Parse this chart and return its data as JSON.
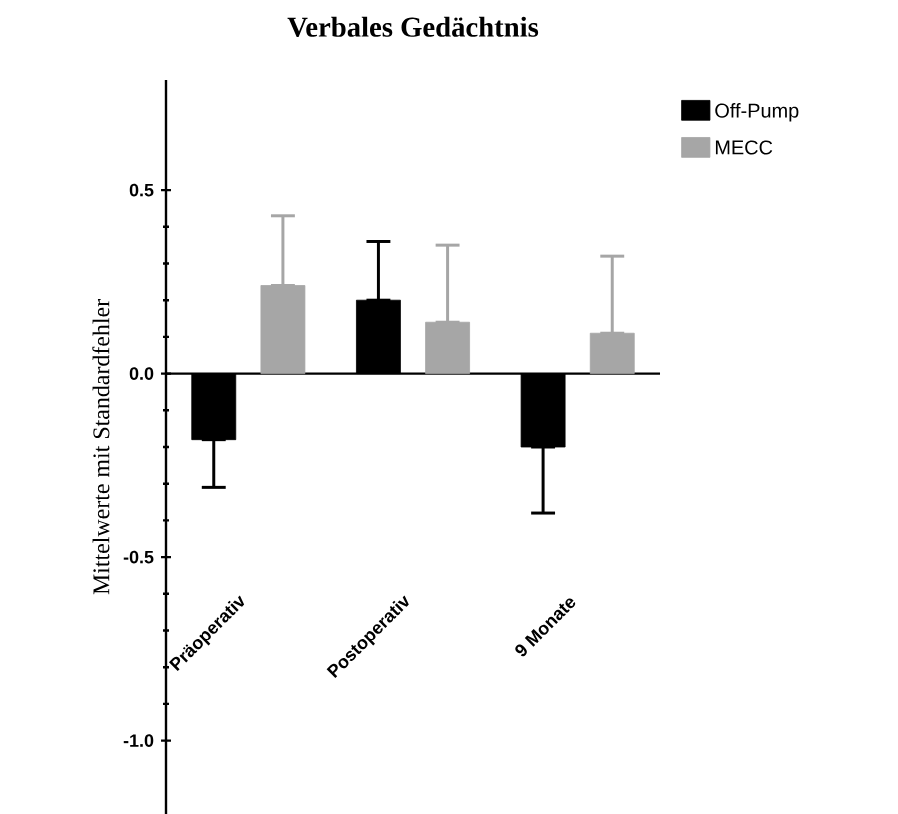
{
  "chart_data": {
    "type": "bar",
    "title": "Verbales Gedächtnis",
    "ylabel": "Mittelwerte mit Standardfehler",
    "categories": [
      "Präoperativ",
      "Postoperativ",
      "9 Monate"
    ],
    "series": [
      {
        "name": "Off-Pump",
        "color": "#000000",
        "values": [
          -0.18,
          0.2,
          -0.2
        ],
        "errors": [
          [
            -0.31,
            -0.18
          ],
          [
            0.2,
            0.36
          ],
          [
            -0.38,
            -0.2
          ]
        ]
      },
      {
        "name": "MECC",
        "color": "#a6a6a6",
        "values": [
          0.24,
          0.14,
          0.11
        ],
        "errors": [
          [
            0.24,
            0.43
          ],
          [
            0.14,
            0.35
          ],
          [
            0.11,
            0.32
          ]
        ]
      }
    ],
    "ylim": [
      -1.2,
      0.8
    ],
    "yticks": [
      {
        "value": -1,
        "label": "-1.0"
      },
      {
        "value": -0.5,
        "label": "-0.5"
      },
      {
        "value": 0,
        "label": "0.0"
      },
      {
        "value": 0.5,
        "label": "0.5"
      }
    ],
    "legend": "top right"
  }
}
